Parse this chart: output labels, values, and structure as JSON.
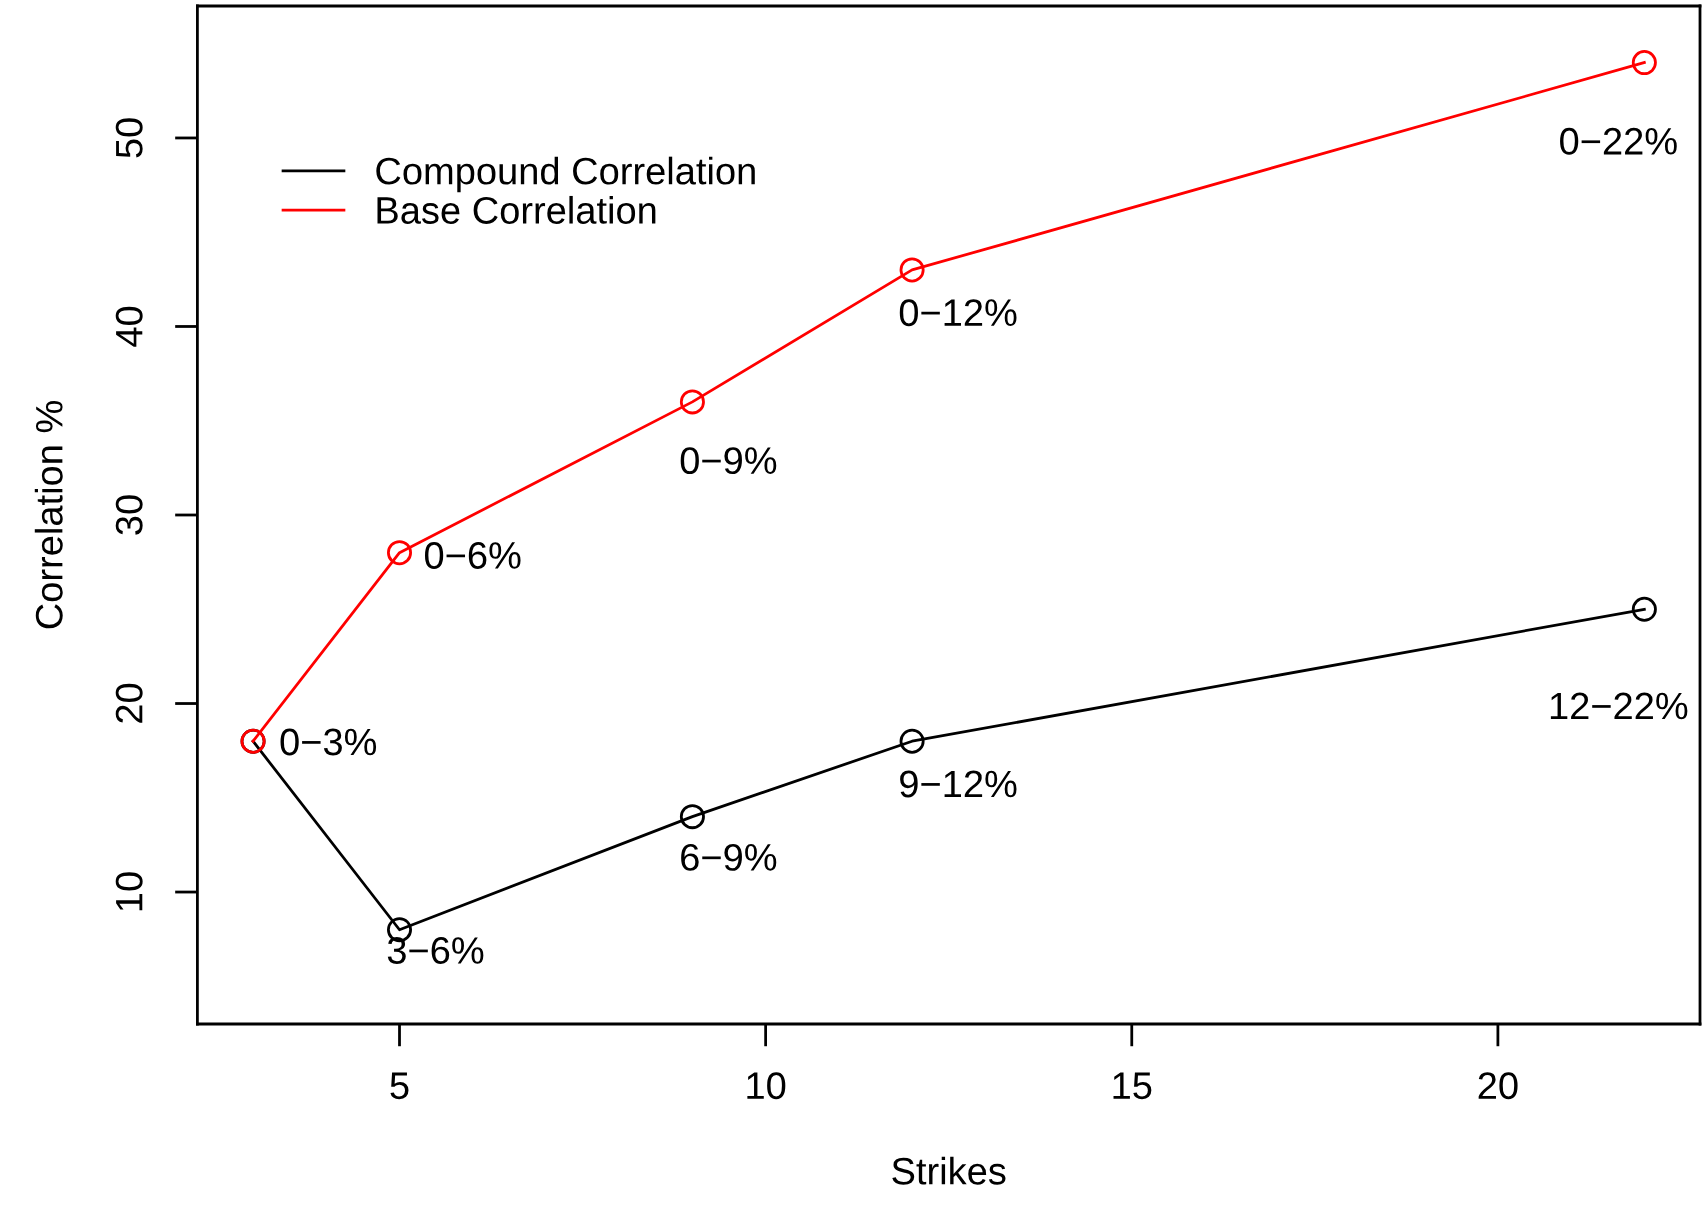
{
  "chart_data": {
    "type": "line",
    "xlabel": "Strikes",
    "ylabel": "Correlation %",
    "x": [
      3,
      5,
      9,
      12,
      22
    ],
    "series": [
      {
        "name": "Compound Correlation",
        "color": "#000000",
        "values": [
          18,
          8,
          14,
          18,
          25
        ]
      },
      {
        "name": "Base Correlation",
        "color": "#ff0000",
        "values": [
          18,
          28,
          36,
          43,
          54
        ]
      }
    ],
    "xlim": [
      2.24,
      22.76
    ],
    "ylim": [
      3,
      57
    ],
    "xticks": [
      5,
      10,
      15,
      20
    ],
    "yticks": [
      10,
      20,
      30,
      40,
      50
    ],
    "marker": "circle",
    "line_style": "solid",
    "legend": "top left",
    "annotations": [
      {
        "text": "0−3%",
        "x": 3,
        "y": 18
      },
      {
        "text": "0−6%",
        "x": 5,
        "y": 28
      },
      {
        "text": "0−9%",
        "x": 9,
        "y": 36
      },
      {
        "text": "0−12%",
        "x": 12,
        "y": 43
      },
      {
        "text": "0−22%",
        "x": 22,
        "y": 54
      },
      {
        "text": "3−6%",
        "x": 5,
        "y": 8
      },
      {
        "text": "6−9%",
        "x": 9,
        "y": 14
      },
      {
        "text": "9−12%",
        "x": 12,
        "y": 18
      },
      {
        "text": "12−22%",
        "x": 22,
        "y": 25
      }
    ]
  }
}
